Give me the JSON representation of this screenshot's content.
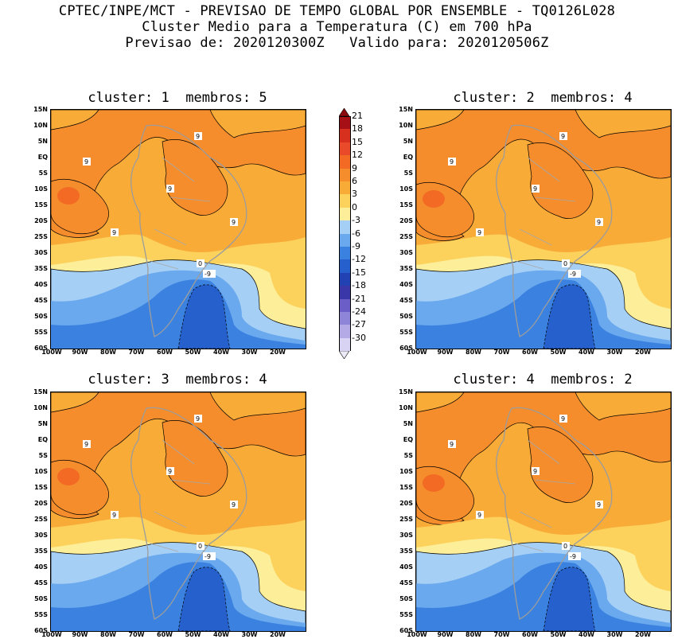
{
  "header": {
    "line1": "CPTEC/INPE/MCT - PREVISAO DE TEMPO GLOBAL POR ENSEMBLE - TQ0126L028",
    "line2": "Cluster Medio para a Temperatura (C) em 700 hPa",
    "line3": "Previsao de: 2020120300Z   Valido para: 2020120506Z"
  },
  "panels": [
    {
      "title": "cluster: 1  membros: 5"
    },
    {
      "title": "cluster: 2  membros: 4"
    },
    {
      "title": "cluster: 3  membros: 4"
    },
    {
      "title": "cluster: 4  membros: 2"
    }
  ],
  "lat_ticks": [
    "15N",
    "10N",
    "5N",
    "EQ",
    "5S",
    "10S",
    "15S",
    "20S",
    "25S",
    "30S",
    "35S",
    "40S",
    "45S",
    "50S",
    "55S",
    "60S"
  ],
  "lon_ticks": [
    "100W",
    "90W",
    "80W",
    "70W",
    "60W",
    "50W",
    "40W",
    "30W",
    "20W"
  ],
  "colorbar": {
    "labels": [
      "21",
      "18",
      "15",
      "12",
      "9",
      "6",
      "3",
      "0",
      "-3",
      "-6",
      "-9",
      "-12",
      "-15",
      "-18",
      "-21",
      "-24",
      "-27",
      "-30"
    ],
    "colors": [
      "#a50f15",
      "#d7301f",
      "#e84a2a",
      "#f26a24",
      "#f58d2c",
      "#f9ab38",
      "#fcd25c",
      "#fdee9a",
      "#a6cff5",
      "#6aa9ee",
      "#3b82e0",
      "#2660cc",
      "#2242b3",
      "#3a37a8",
      "#6b5fc7",
      "#8f85d8",
      "#b3aae6",
      "#d8d3f2"
    ]
  },
  "contour_labels": {
    "warm": "9",
    "zero": "0",
    "cold": "-9"
  }
}
